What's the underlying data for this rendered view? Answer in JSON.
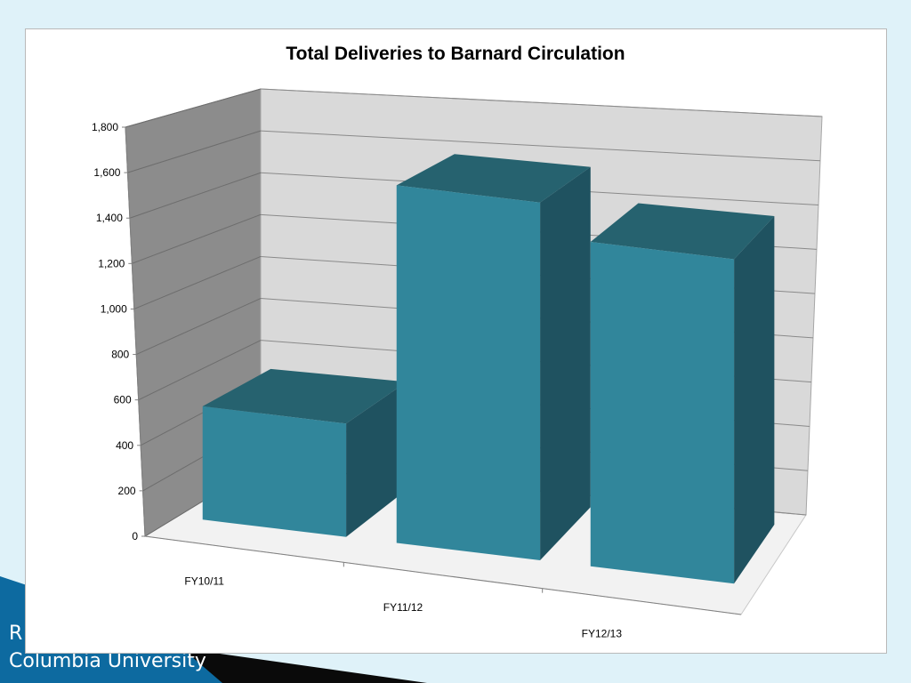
{
  "slide": {
    "footer_line1": "R",
    "footer_line2": "Columbia University",
    "colors": {
      "background": "#dff2f9",
      "band_dark": "#0a0a0a",
      "band_blue": "#0d6aa0"
    }
  },
  "chart_data": {
    "type": "bar",
    "style": "3d",
    "title": "Total Deliveries to Barnard Circulation",
    "categories": [
      "FY10/11",
      "FY11/12",
      "FY12/13"
    ],
    "values": [
      510,
      1610,
      1460
    ],
    "ylim": [
      0,
      1800
    ],
    "yticks": [
      0,
      200,
      400,
      600,
      800,
      1000,
      1200,
      1400,
      1600,
      1800
    ],
    "ytick_labels": [
      "0",
      "200",
      "400",
      "600",
      "800",
      "1,000",
      "1,200",
      "1,400",
      "1,600",
      "1,800"
    ],
    "xlabel": "",
    "ylabel": "",
    "grid": true,
    "legend": false,
    "colors": {
      "bar_front": "#31869b",
      "bar_top": "#26626f",
      "bar_side": "#1f5260",
      "back_wall": "#d9d9d9",
      "side_wall": "#8c8c8c",
      "floor": "#f2f2f2"
    }
  }
}
